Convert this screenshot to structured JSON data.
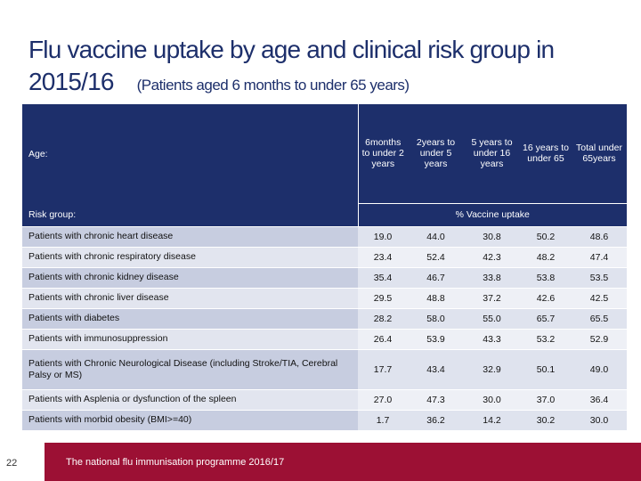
{
  "title": {
    "line1": "Flu vaccine uptake by age and clinical risk group in",
    "line2": "2015/16",
    "subtitle": "(Patients aged 6 months to under 65 years)"
  },
  "table": {
    "age_label": "Age:",
    "risk_label": "Risk group:",
    "pct_label": "% Vaccine uptake",
    "columns": [
      "6months to under 2 years",
      "2years to under 5 years",
      "5 years to under 16 years",
      "16 years to under 65",
      "Total under 65years"
    ],
    "rows": [
      {
        "label": "Patients with chronic heart disease",
        "values": [
          "19.0",
          "44.0",
          "30.8",
          "50.2",
          "48.6"
        ]
      },
      {
        "label": "Patients with chronic respiratory disease",
        "values": [
          "23.4",
          "52.4",
          "42.3",
          "48.2",
          "47.4"
        ]
      },
      {
        "label": "Patients with chronic kidney disease",
        "values": [
          "35.4",
          "46.7",
          "33.8",
          "53.8",
          "53.5"
        ]
      },
      {
        "label": "Patients with chronic liver disease",
        "values": [
          "29.5",
          "48.8",
          "37.2",
          "42.6",
          "42.5"
        ]
      },
      {
        "label": "Patients with diabetes",
        "values": [
          "28.2",
          "58.0",
          "55.0",
          "65.7",
          "65.5"
        ]
      },
      {
        "label": "Patients with immunosuppression",
        "values": [
          "26.4",
          "53.9",
          "43.3",
          "53.2",
          "52.9"
        ]
      },
      {
        "label": "Patients with Chronic Neurological Disease (including Stroke/TIA, Cerebral Palsy or MS)",
        "values": [
          "17.7",
          "43.4",
          "32.9",
          "50.1",
          "49.0"
        ]
      },
      {
        "label": "Patients with Asplenia or dysfunction of the spleen",
        "values": [
          "27.0",
          "47.3",
          "30.0",
          "37.0",
          "36.4"
        ]
      },
      {
        "label": "Patients with morbid obesity (BMI>=40)",
        "values": [
          "1.7",
          "36.2",
          "14.2",
          "30.2",
          "30.0"
        ]
      }
    ]
  },
  "footer": {
    "page_number": "22",
    "text": "The national flu immunisation programme 2016/17"
  },
  "colors": {
    "header_navy": "#1d2f6b",
    "footer_crimson": "#9c1034",
    "row_label_odd": "#c7cde0",
    "row_value_odd": "#dfe3ee"
  }
}
